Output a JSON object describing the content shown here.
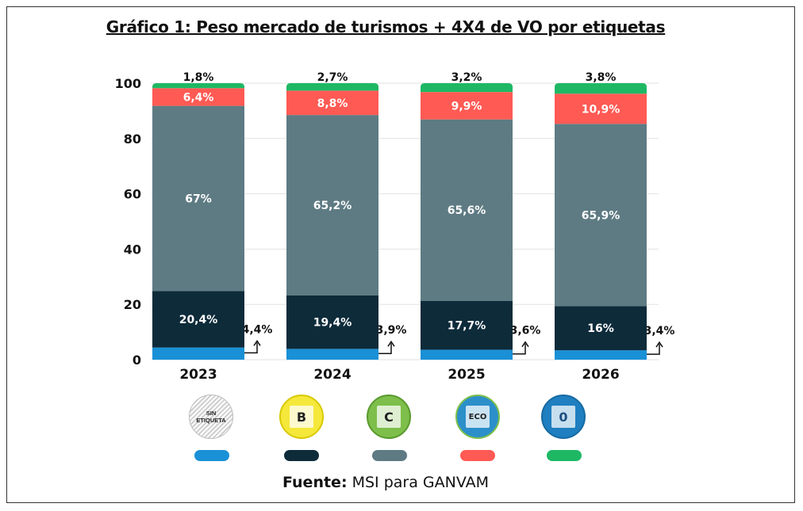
{
  "title": "Gráfico 1: Peso mercado de turismos + 4X4 de VO por etiquetas",
  "source_label": "Fuente:",
  "source_text": "MSI para GANVAM",
  "colors": {
    "sin_etiqueta": "#1a90d6",
    "b": "#0e2b3a",
    "c": "#5e7b83",
    "eco": "#ff5a54",
    "zero": "#1eb864"
  },
  "badges": [
    {
      "icon": "sin-etiqueta-badge-icon",
      "text": "SIN\nETIQUETA",
      "color_key": "sin_etiqueta"
    },
    {
      "icon": "b-badge-icon",
      "text": "B",
      "color_key": "b"
    },
    {
      "icon": "c-badge-icon",
      "text": "C",
      "color_key": "c"
    },
    {
      "icon": "eco-badge-icon",
      "text": "ECO",
      "color_key": "eco"
    },
    {
      "icon": "zero-badge-icon",
      "text": "0",
      "color_key": "zero"
    }
  ],
  "chart_data": {
    "type": "bar",
    "stacked": true,
    "categories": [
      "2023",
      "2024",
      "2025",
      "2026"
    ],
    "ylim": [
      0,
      100
    ],
    "yticks": [
      "0",
      "20",
      "40",
      "60",
      "80",
      "100"
    ],
    "grid": true,
    "series": [
      {
        "key": "sin_etiqueta",
        "values": [
          4.4,
          3.9,
          3.6,
          3.4
        ],
        "labels": [
          "4,4%",
          "3,9%",
          "3,6%",
          "3,4%"
        ],
        "label_outside": true
      },
      {
        "key": "b",
        "values": [
          20.4,
          19.4,
          17.7,
          16
        ],
        "labels": [
          "20,4%",
          "19,4%",
          "17,7%",
          "16%"
        ]
      },
      {
        "key": "c",
        "values": [
          67,
          65.2,
          65.6,
          65.9
        ],
        "labels": [
          "67%",
          "65,2%",
          "65,6%",
          "65,9%"
        ]
      },
      {
        "key": "eco",
        "values": [
          6.4,
          8.8,
          9.9,
          10.9
        ],
        "labels": [
          "6,4%",
          "8,8%",
          "9,9%",
          "10,9%"
        ]
      },
      {
        "key": "zero",
        "values": [
          1.8,
          2.7,
          3.2,
          3.8
        ],
        "labels": [
          "1,8%",
          "2,7%",
          "3,2%",
          "3,8%"
        ],
        "label_above": true
      }
    ]
  }
}
